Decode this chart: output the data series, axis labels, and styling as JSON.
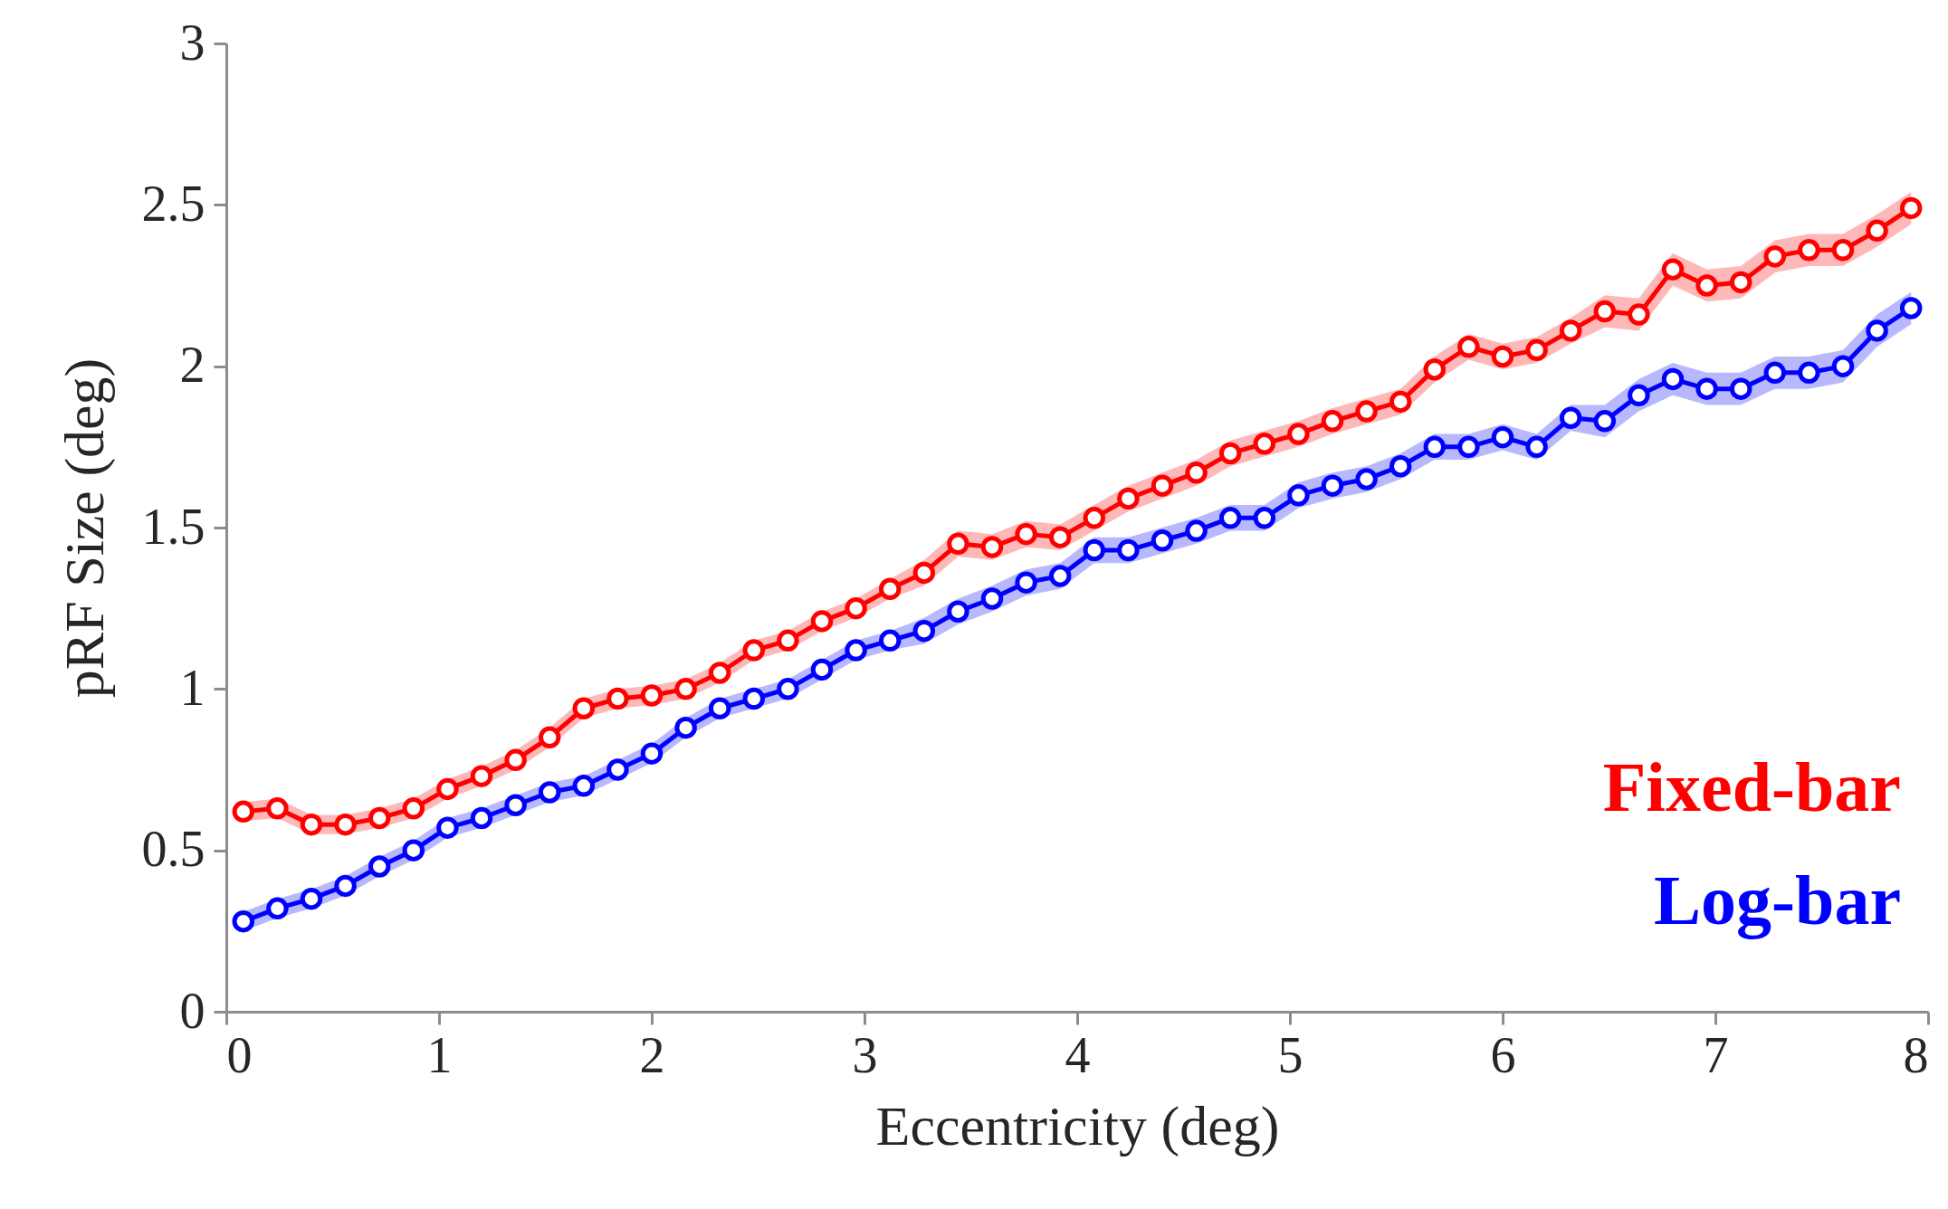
{
  "chart_data": {
    "type": "line",
    "xlabel": "Eccentricity (deg)",
    "ylabel": "pRF Size (deg)",
    "x": [
      0.08,
      0.24,
      0.4,
      0.56,
      0.72,
      0.88,
      1.04,
      1.2,
      1.36,
      1.52,
      1.68,
      1.84,
      2,
      2.16,
      2.32,
      2.48,
      2.64,
      2.8,
      2.96,
      3.12,
      3.28,
      3.44,
      3.6,
      3.76,
      3.92,
      4.08,
      4.24,
      4.4,
      4.56,
      4.72,
      4.88,
      5.04,
      5.2,
      5.36,
      5.52,
      5.68,
      5.84,
      6,
      6.16,
      6.32,
      6.48,
      6.64,
      6.8,
      6.96,
      7.12,
      7.28,
      7.44,
      7.6,
      7.76,
      7.92
    ],
    "series": [
      {
        "name": "Fixed-bar",
        "color": "#ff0000",
        "values": [
          0.62,
          0.63,
          0.58,
          0.58,
          0.6,
          0.63,
          0.69,
          0.73,
          0.78,
          0.85,
          0.94,
          0.97,
          0.98,
          1.0,
          1.05,
          1.12,
          1.15,
          1.21,
          1.25,
          1.31,
          1.36,
          1.45,
          1.44,
          1.48,
          1.47,
          1.53,
          1.59,
          1.63,
          1.67,
          1.73,
          1.76,
          1.79,
          1.83,
          1.86,
          1.89,
          1.99,
          2.06,
          2.03,
          2.05,
          2.11,
          2.17,
          2.16,
          2.3,
          2.25,
          2.26,
          2.34,
          2.36,
          2.36,
          2.42,
          2.49
        ],
        "lower": [
          0.59,
          0.6,
          0.55,
          0.55,
          0.57,
          0.6,
          0.66,
          0.7,
          0.75,
          0.82,
          0.91,
          0.94,
          0.95,
          0.97,
          1.02,
          1.09,
          1.12,
          1.18,
          1.22,
          1.28,
          1.32,
          1.41,
          1.4,
          1.44,
          1.43,
          1.49,
          1.55,
          1.59,
          1.63,
          1.69,
          1.72,
          1.75,
          1.79,
          1.82,
          1.85,
          1.95,
          2.02,
          1.99,
          2.01,
          2.07,
          2.12,
          2.11,
          2.25,
          2.2,
          2.21,
          2.29,
          2.31,
          2.31,
          2.37,
          2.44
        ],
        "upper": [
          0.65,
          0.66,
          0.61,
          0.61,
          0.63,
          0.66,
          0.72,
          0.76,
          0.81,
          0.88,
          0.97,
          1.0,
          1.01,
          1.03,
          1.08,
          1.15,
          1.18,
          1.24,
          1.28,
          1.34,
          1.4,
          1.49,
          1.48,
          1.52,
          1.51,
          1.57,
          1.63,
          1.67,
          1.71,
          1.77,
          1.8,
          1.83,
          1.87,
          1.9,
          1.93,
          2.03,
          2.1,
          2.07,
          2.09,
          2.15,
          2.22,
          2.21,
          2.35,
          2.3,
          2.31,
          2.39,
          2.41,
          2.41,
          2.47,
          2.54
        ]
      },
      {
        "name": "Log-bar",
        "color": "#0000ff",
        "values": [
          0.28,
          0.32,
          0.35,
          0.39,
          0.45,
          0.5,
          0.57,
          0.6,
          0.64,
          0.68,
          0.7,
          0.75,
          0.8,
          0.88,
          0.94,
          0.97,
          1.0,
          1.06,
          1.12,
          1.15,
          1.18,
          1.24,
          1.28,
          1.33,
          1.35,
          1.43,
          1.43,
          1.46,
          1.49,
          1.53,
          1.53,
          1.6,
          1.63,
          1.65,
          1.69,
          1.75,
          1.75,
          1.78,
          1.75,
          1.84,
          1.83,
          1.91,
          1.96,
          1.93,
          1.93,
          1.98,
          1.98,
          2.0,
          2.11,
          2.18
        ],
        "lower": [
          0.25,
          0.29,
          0.32,
          0.36,
          0.42,
          0.47,
          0.54,
          0.57,
          0.61,
          0.65,
          0.67,
          0.72,
          0.77,
          0.85,
          0.91,
          0.94,
          0.97,
          1.03,
          1.09,
          1.12,
          1.14,
          1.2,
          1.24,
          1.29,
          1.31,
          1.39,
          1.39,
          1.42,
          1.45,
          1.49,
          1.49,
          1.56,
          1.59,
          1.61,
          1.65,
          1.71,
          1.71,
          1.74,
          1.71,
          1.8,
          1.78,
          1.86,
          1.91,
          1.88,
          1.88,
          1.93,
          1.93,
          1.95,
          2.06,
          2.13
        ],
        "upper": [
          0.31,
          0.35,
          0.38,
          0.42,
          0.48,
          0.53,
          0.6,
          0.63,
          0.67,
          0.71,
          0.73,
          0.78,
          0.83,
          0.91,
          0.97,
          1.0,
          1.03,
          1.09,
          1.15,
          1.18,
          1.22,
          1.28,
          1.32,
          1.37,
          1.39,
          1.47,
          1.47,
          1.5,
          1.53,
          1.57,
          1.57,
          1.64,
          1.67,
          1.69,
          1.73,
          1.79,
          1.79,
          1.82,
          1.79,
          1.88,
          1.88,
          1.96,
          2.01,
          1.98,
          1.98,
          2.03,
          2.03,
          2.05,
          2.16,
          2.23
        ]
      }
    ],
    "xlim": [
      0,
      8
    ],
    "xticks": [
      0,
      1,
      2,
      3,
      4,
      5,
      6,
      7,
      8
    ],
    "ylim": [
      0,
      3
    ],
    "yticks": [
      0,
      0.5,
      1,
      1.5,
      2,
      2.5,
      3
    ],
    "grid": false,
    "legend": "bottom right",
    "marker": "circle",
    "line_style": "solid"
  }
}
